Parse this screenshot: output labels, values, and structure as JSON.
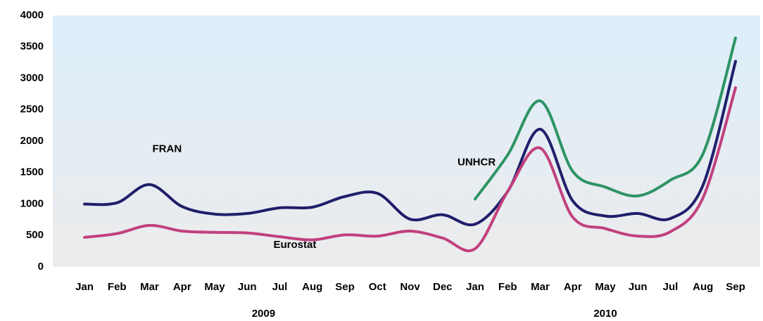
{
  "chart_data": {
    "type": "line",
    "categories": [
      "Jan",
      "Feb",
      "Mar",
      "Apr",
      "May",
      "Jun",
      "Jul",
      "Aug",
      "Sep",
      "Oct",
      "Nov",
      "Dec",
      "Jan",
      "Feb",
      "Mar",
      "Apr",
      "May",
      "Jun",
      "Jul",
      "Aug",
      "Sep"
    ],
    "groups": [
      "2009",
      "2010"
    ],
    "series": [
      {
        "name": "FRAN",
        "color": "#1f1f6b",
        "values": [
          1000,
          1020,
          1310,
          960,
          840,
          850,
          940,
          950,
          1120,
          1170,
          760,
          830,
          680,
          1200,
          2190,
          1050,
          810,
          850,
          770,
          1300,
          3270
        ]
      },
      {
        "name": "Eurostat",
        "color": "#c2407e",
        "values": [
          470,
          530,
          660,
          570,
          550,
          540,
          480,
          430,
          510,
          490,
          570,
          460,
          290,
          1200,
          1890,
          790,
          610,
          490,
          560,
          1100,
          2850
        ]
      },
      {
        "name": "UNHCR",
        "color": "#2e9464",
        "values": [
          null,
          null,
          null,
          null,
          null,
          null,
          null,
          null,
          null,
          null,
          null,
          null,
          1080,
          1780,
          2640,
          1520,
          1270,
          1130,
          1380,
          1800,
          3640
        ]
      }
    ],
    "ylim": [
      0,
      4000
    ],
    "yticks": [
      0,
      500,
      1000,
      1500,
      2000,
      2500,
      3000,
      3500,
      4000
    ],
    "grid": false
  }
}
